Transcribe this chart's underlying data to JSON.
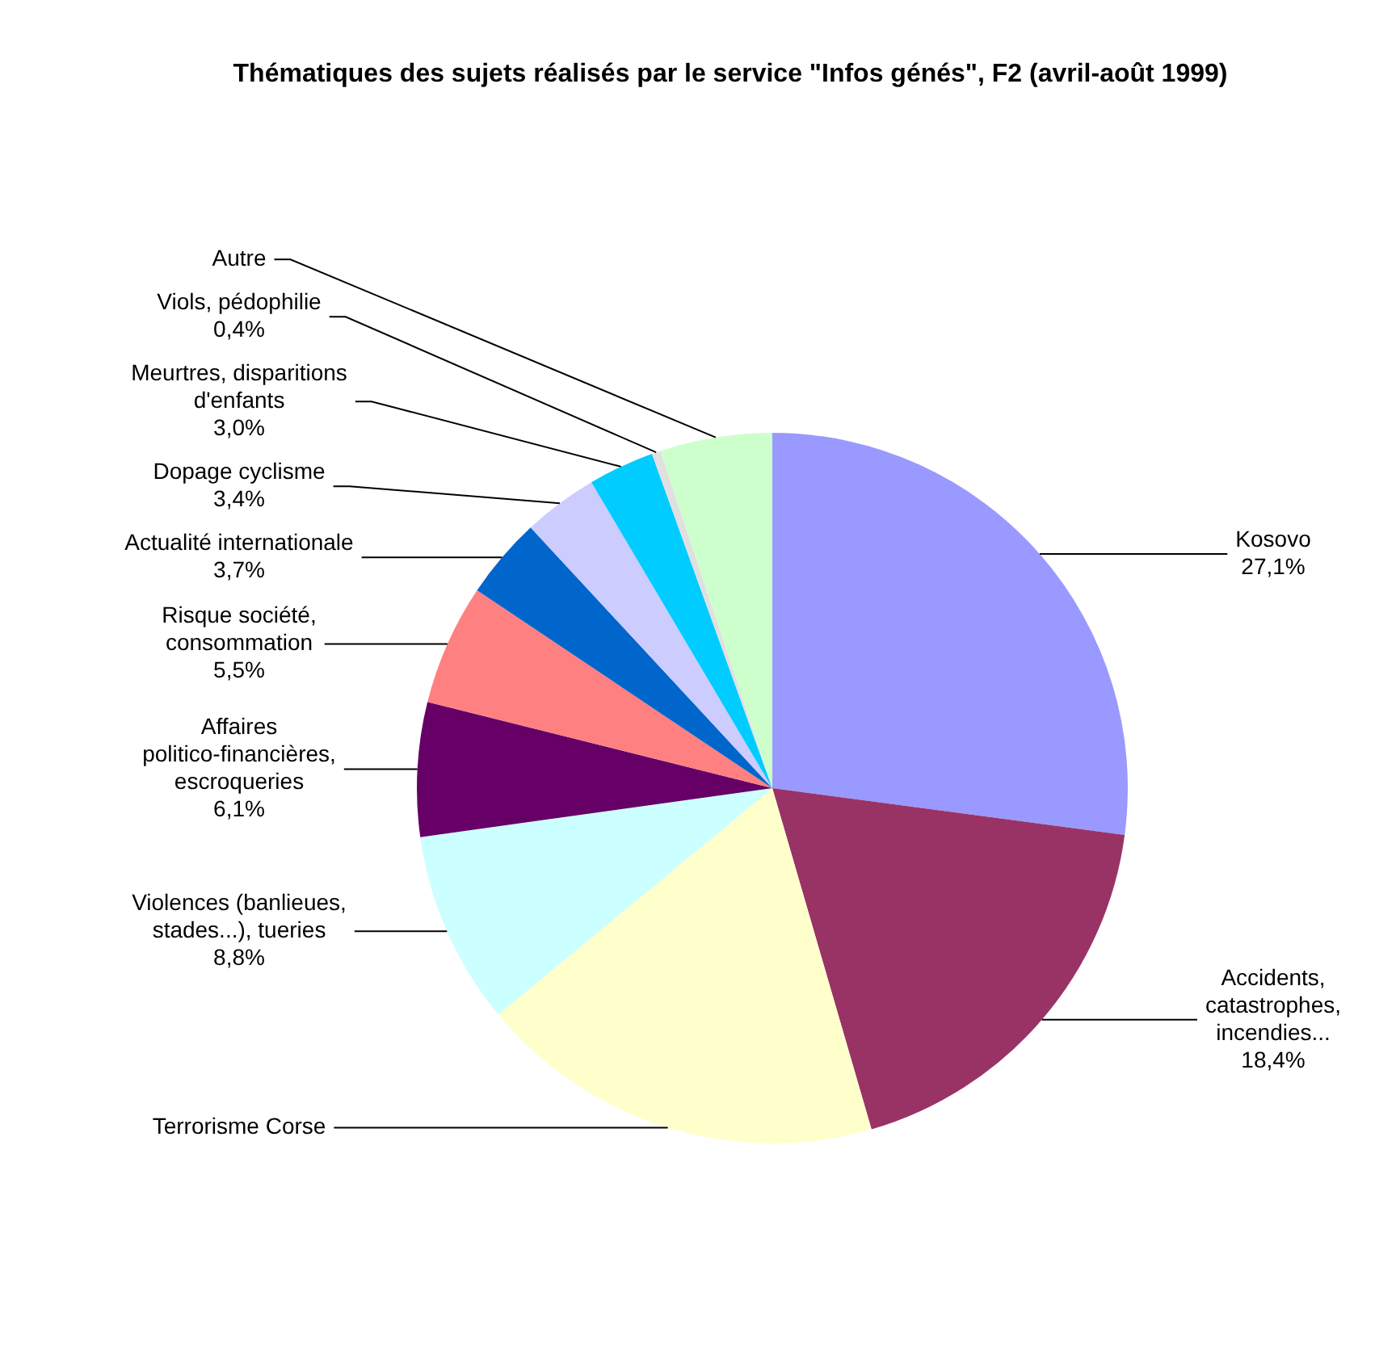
{
  "chart_data": {
    "type": "pie",
    "title": "Thématiques des sujets réalisés par le service \"Infos génés\", F2 (avril-août 1999)",
    "categories": [
      "Kosovo",
      "Accidents, catastrophes, incendies...",
      "Terrorisme Corse",
      "Violences (banlieues, stades...), tueries",
      "Affaires politico-financières, escroqueries",
      "Risque société, consommation",
      "Actualité internationale",
      "Dopage cyclisme",
      "Meurtres, disparitions d'enfants",
      "Viols, pédophilie",
      "Autre"
    ],
    "values": [
      27.1,
      18.4,
      18.5,
      8.8,
      6.1,
      5.5,
      3.7,
      3.4,
      3.0,
      0.4,
      5.1
    ],
    "value_labels": [
      "27,1%",
      "18,4%",
      null,
      "8,8%",
      "6,1%",
      "5,5%",
      "3,7%",
      "3,4%",
      "3,0%",
      "0,4%",
      null
    ],
    "colors": [
      "#9999ff",
      "#993366",
      "#ffffcc",
      "#ccffff",
      "#660066",
      "#ff8080",
      "#0066cc",
      "#ccccff",
      "#00ccff",
      "#e0e0e0",
      "#ccffcc"
    ],
    "legend": false
  }
}
